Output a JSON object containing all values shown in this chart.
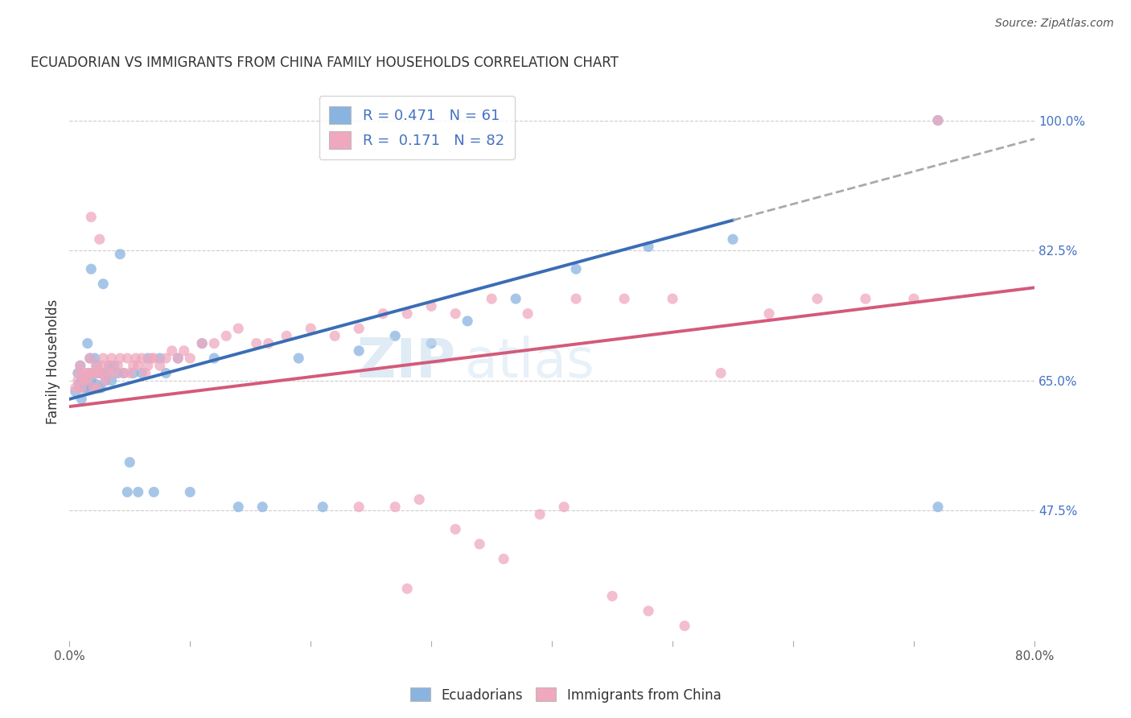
{
  "title": "ECUADORIAN VS IMMIGRANTS FROM CHINA FAMILY HOUSEHOLDS CORRELATION CHART",
  "source": "Source: ZipAtlas.com",
  "ylabel": "Family Households",
  "xlim": [
    0.0,
    0.8
  ],
  "ylim": [
    0.3,
    1.05
  ],
  "xticks": [
    0.0,
    0.1,
    0.2,
    0.3,
    0.4,
    0.5,
    0.6,
    0.7,
    0.8
  ],
  "xtick_labels": [
    "0.0%",
    "",
    "",
    "",
    "",
    "",
    "",
    "",
    "80.0%"
  ],
  "ytick_labels_right": [
    "100.0%",
    "82.5%",
    "65.0%",
    "47.5%"
  ],
  "ytick_vals_right": [
    1.0,
    0.825,
    0.65,
    0.475
  ],
  "R_blue": 0.471,
  "N_blue": 61,
  "R_pink": 0.171,
  "N_pink": 82,
  "blue_color": "#8ab4e0",
  "pink_color": "#f0a8be",
  "blue_line_color": "#3a6db5",
  "pink_line_color": "#d45a7a",
  "dashed_line_color": "#aaaaaa",
  "blue_line_x0": 0.0,
  "blue_line_y0": 0.625,
  "blue_line_x1": 0.8,
  "blue_line_y1": 0.975,
  "blue_line_solid_end": 0.55,
  "pink_line_x0": 0.0,
  "pink_line_y0": 0.615,
  "pink_line_x1": 0.8,
  "pink_line_y1": 0.775,
  "blue_scatter_x": [
    0.005,
    0.007,
    0.008,
    0.009,
    0.01,
    0.01,
    0.012,
    0.013,
    0.015,
    0.015,
    0.016,
    0.017,
    0.018,
    0.018,
    0.019,
    0.02,
    0.02,
    0.021,
    0.022,
    0.022,
    0.023,
    0.024,
    0.025,
    0.026,
    0.027,
    0.028,
    0.03,
    0.031,
    0.033,
    0.035,
    0.037,
    0.04,
    0.042,
    0.045,
    0.048,
    0.05,
    0.053,
    0.057,
    0.06,
    0.065,
    0.07,
    0.075,
    0.08,
    0.09,
    0.1,
    0.11,
    0.12,
    0.14,
    0.16,
    0.19,
    0.21,
    0.24,
    0.27,
    0.3,
    0.33,
    0.37,
    0.42,
    0.48,
    0.55,
    0.72,
    0.72
  ],
  "blue_scatter_y": [
    0.635,
    0.66,
    0.645,
    0.67,
    0.625,
    0.65,
    0.64,
    0.655,
    0.64,
    0.7,
    0.66,
    0.68,
    0.65,
    0.8,
    0.64,
    0.64,
    0.66,
    0.68,
    0.645,
    0.66,
    0.67,
    0.64,
    0.66,
    0.64,
    0.66,
    0.78,
    0.65,
    0.66,
    0.67,
    0.65,
    0.67,
    0.66,
    0.82,
    0.66,
    0.5,
    0.54,
    0.66,
    0.5,
    0.66,
    0.68,
    0.5,
    0.68,
    0.66,
    0.68,
    0.5,
    0.7,
    0.68,
    0.48,
    0.48,
    0.68,
    0.48,
    0.69,
    0.71,
    0.7,
    0.73,
    0.76,
    0.8,
    0.83,
    0.84,
    0.48,
    1.0
  ],
  "pink_scatter_x": [
    0.005,
    0.007,
    0.008,
    0.009,
    0.01,
    0.012,
    0.013,
    0.015,
    0.016,
    0.017,
    0.018,
    0.019,
    0.02,
    0.021,
    0.022,
    0.023,
    0.024,
    0.025,
    0.026,
    0.027,
    0.028,
    0.03,
    0.032,
    0.033,
    0.035,
    0.037,
    0.04,
    0.042,
    0.045,
    0.048,
    0.05,
    0.053,
    0.055,
    0.057,
    0.06,
    0.063,
    0.065,
    0.068,
    0.07,
    0.075,
    0.08,
    0.085,
    0.09,
    0.095,
    0.1,
    0.11,
    0.12,
    0.13,
    0.14,
    0.155,
    0.165,
    0.18,
    0.2,
    0.22,
    0.24,
    0.26,
    0.28,
    0.3,
    0.32,
    0.35,
    0.38,
    0.42,
    0.46,
    0.5,
    0.54,
    0.58,
    0.62,
    0.66,
    0.7,
    0.72,
    0.24,
    0.27,
    0.29,
    0.32,
    0.34,
    0.36,
    0.28,
    0.39,
    0.41,
    0.45,
    0.48,
    0.51
  ],
  "pink_scatter_y": [
    0.64,
    0.65,
    0.66,
    0.67,
    0.64,
    0.65,
    0.66,
    0.65,
    0.66,
    0.68,
    0.87,
    0.66,
    0.64,
    0.66,
    0.67,
    0.64,
    0.66,
    0.84,
    0.66,
    0.67,
    0.68,
    0.65,
    0.66,
    0.67,
    0.68,
    0.66,
    0.67,
    0.68,
    0.66,
    0.68,
    0.66,
    0.67,
    0.68,
    0.67,
    0.68,
    0.66,
    0.67,
    0.68,
    0.68,
    0.67,
    0.68,
    0.69,
    0.68,
    0.69,
    0.68,
    0.7,
    0.7,
    0.71,
    0.72,
    0.7,
    0.7,
    0.71,
    0.72,
    0.71,
    0.72,
    0.74,
    0.74,
    0.75,
    0.74,
    0.76,
    0.74,
    0.76,
    0.76,
    0.76,
    0.66,
    0.74,
    0.76,
    0.76,
    0.76,
    1.0,
    0.48,
    0.48,
    0.49,
    0.45,
    0.43,
    0.41,
    0.37,
    0.47,
    0.48,
    0.36,
    0.34,
    0.32
  ]
}
